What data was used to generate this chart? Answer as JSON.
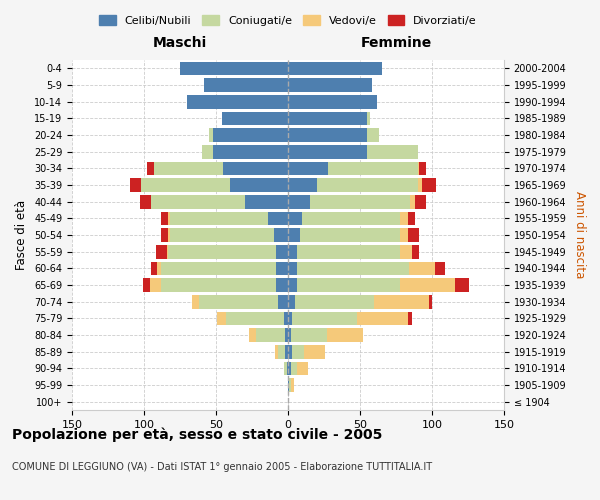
{
  "age_groups": [
    "100+",
    "95-99",
    "90-94",
    "85-89",
    "80-84",
    "75-79",
    "70-74",
    "65-69",
    "60-64",
    "55-59",
    "50-54",
    "45-49",
    "40-44",
    "35-39",
    "30-34",
    "25-29",
    "20-24",
    "15-19",
    "10-14",
    "5-9",
    "0-4"
  ],
  "birth_years": [
    "≤ 1904",
    "1905-1909",
    "1910-1914",
    "1915-1919",
    "1920-1924",
    "1925-1929",
    "1930-1934",
    "1935-1939",
    "1940-1944",
    "1945-1949",
    "1950-1954",
    "1955-1959",
    "1960-1964",
    "1965-1969",
    "1970-1974",
    "1975-1979",
    "1980-1984",
    "1985-1989",
    "1990-1994",
    "1995-1999",
    "2000-2004"
  ],
  "colors": {
    "celibe": "#4e7faf",
    "coniugato": "#c5d8a0",
    "vedovo": "#f5c97a",
    "divorziato": "#cc2222"
  },
  "males": {
    "celibe": [
      0,
      0,
      1,
      2,
      2,
      3,
      7,
      8,
      8,
      8,
      10,
      14,
      30,
      40,
      45,
      52,
      52,
      46,
      70,
      58,
      75
    ],
    "coniugato": [
      0,
      0,
      2,
      5,
      20,
      40,
      55,
      80,
      80,
      75,
      72,
      68,
      65,
      62,
      48,
      8,
      3,
      0,
      0,
      0,
      0
    ],
    "vedovo": [
      0,
      0,
      0,
      2,
      5,
      6,
      5,
      8,
      3,
      1,
      1,
      1,
      0,
      0,
      0,
      0,
      0,
      0,
      0,
      0,
      0
    ],
    "divorziato": [
      0,
      0,
      0,
      0,
      0,
      0,
      0,
      5,
      4,
      8,
      5,
      5,
      8,
      8,
      5,
      0,
      0,
      0,
      0,
      0,
      0
    ]
  },
  "females": {
    "nubile": [
      0,
      1,
      2,
      3,
      2,
      3,
      5,
      6,
      6,
      6,
      8,
      10,
      15,
      20,
      28,
      55,
      55,
      55,
      62,
      58,
      65
    ],
    "coniugata": [
      0,
      1,
      4,
      8,
      25,
      45,
      55,
      72,
      78,
      72,
      70,
      68,
      70,
      70,
      62,
      35,
      8,
      2,
      0,
      0,
      0
    ],
    "vedova": [
      0,
      2,
      8,
      15,
      25,
      35,
      38,
      38,
      18,
      8,
      5,
      5,
      3,
      3,
      1,
      0,
      0,
      0,
      0,
      0,
      0
    ],
    "divorziata": [
      0,
      0,
      0,
      0,
      0,
      3,
      2,
      10,
      7,
      5,
      8,
      5,
      8,
      10,
      5,
      0,
      0,
      0,
      0,
      0,
      0
    ]
  },
  "title": "Popolazione per età, sesso e stato civile - 2005",
  "subtitle": "COMUNE DI LEGGIUNO (VA) - Dati ISTAT 1° gennaio 2005 - Elaborazione TUTTITALIA.IT",
  "xlabel_left": "Maschi",
  "xlabel_right": "Femmine",
  "ylabel_left": "Fasce di età",
  "ylabel_right": "Anni di nascita",
  "xlim": 150,
  "legend_labels": [
    "Celibi/Nubili",
    "Coniugati/e",
    "Vedovi/e",
    "Divorziati/e"
  ],
  "bg_color": "#f5f5f5",
  "plot_bg_color": "#ffffff"
}
